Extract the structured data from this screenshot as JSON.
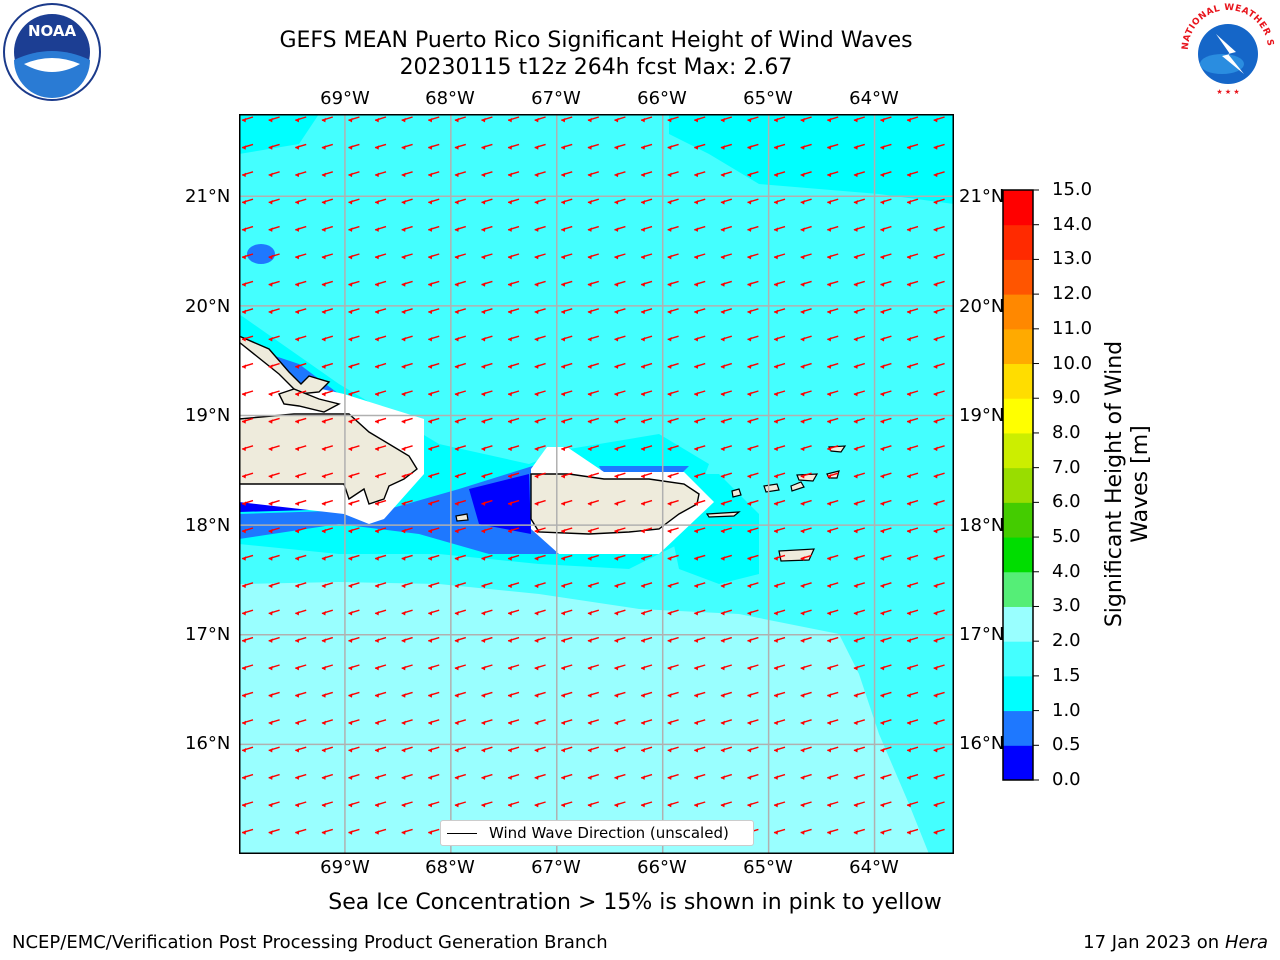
{
  "title": {
    "line1": "GEFS MEAN Puerto Rico Significant Height of Wind Waves",
    "line2": "20230115 t12z 264h fcst   Max: 2.67"
  },
  "map": {
    "lon_labels": [
      "69°W",
      "68°W",
      "67°W",
      "66°W",
      "65°W",
      "64°W"
    ],
    "lat_labels": [
      "21°N",
      "20°N",
      "19°N",
      "18°N",
      "17°N",
      "16°N"
    ],
    "lon_range": [
      -70.0,
      -63.25
    ],
    "lat_range": [
      15.0,
      21.75
    ],
    "arrow_color": "#ff0000",
    "land_color": "#eeebdc",
    "wind_direction": "from east-northeast"
  },
  "colorbar": {
    "label": "Significant Height of Wind Waves [m]",
    "ticks": [
      "0.0",
      "0.5",
      "1.0",
      "1.5",
      "2.0",
      "3.0",
      "4.0",
      "5.0",
      "6.0",
      "7.0",
      "8.0",
      "9.0",
      "10.0",
      "11.0",
      "12.0",
      "13.0",
      "14.0",
      "15.0"
    ],
    "colors": [
      "#0000ff",
      "#1e78ff",
      "#00ffff",
      "#44ffff",
      "#99ffff",
      "#55ee77",
      "#00dd00",
      "#44cc00",
      "#99dd00",
      "#ccee00",
      "#ffff00",
      "#ffdd00",
      "#ffaa00",
      "#ff8800",
      "#ff5500",
      "#ff2a00",
      "#ff0000"
    ]
  },
  "legend": {
    "label": "Wind Wave Direction (unscaled)"
  },
  "logos": {
    "noaa": "NOAA",
    "nws": "NATIONAL WEATHER SERVICE"
  },
  "footer": {
    "note": "Sea Ice Concentration > 15% is shown in pink to yellow",
    "left": "NCEP/EMC/Verification Post Processing Product Generation Branch",
    "right_prefix": "17 Jan 2023 on ",
    "right_host": "Hera"
  }
}
